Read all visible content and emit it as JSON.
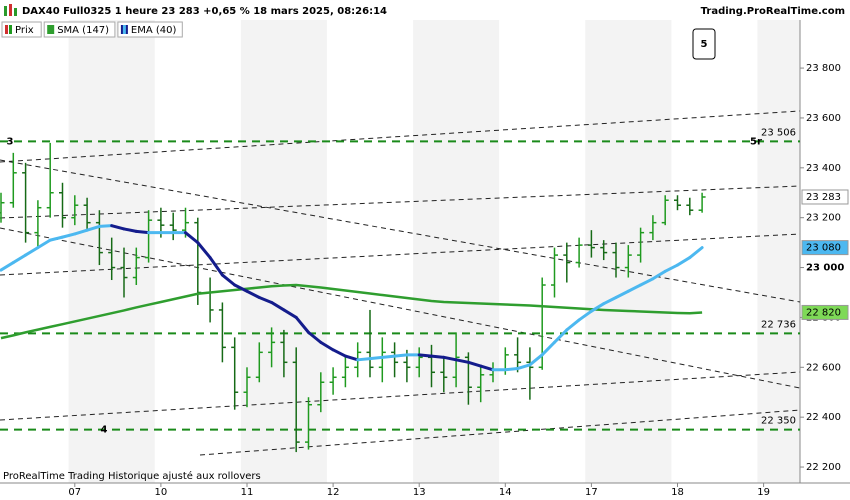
{
  "chart_data": {
    "type": "ohlc",
    "title": "DAX40 Full0325 1 heure 23 283 +0,65 % 18 mars 2025, 08:26:14",
    "source": "Trading.ProRealTime.com",
    "footer": "ProRealTime Trading  Historique ajusté aux rollovers",
    "categories": [
      null,
      null,
      null,
      null,
      null,
      null,
      "07",
      null,
      null,
      null,
      null,
      null,
      null,
      "10",
      null,
      null,
      null,
      null,
      null,
      null,
      "11",
      null,
      null,
      null,
      null,
      null,
      null,
      "12",
      null,
      null,
      null,
      null,
      null,
      null,
      "13",
      null,
      null,
      null,
      null,
      null,
      null,
      "14",
      null,
      null,
      null,
      null,
      null,
      null,
      "17",
      null,
      null,
      null,
      null,
      null,
      null,
      "18",
      null,
      null,
      null,
      null,
      null,
      null,
      "19",
      null,
      null
    ],
    "ylim": [
      22136,
      24073
    ],
    "yticks": [
      {
        "value": 22200,
        "label": "22 200"
      },
      {
        "value": 22400,
        "label": "22 400"
      },
      {
        "value": 22600,
        "label": "22 600"
      },
      {
        "value": 22800,
        "label": "22 800"
      },
      {
        "value": 23000,
        "label": "23 000"
      },
      {
        "value": 23200,
        "label": "23 200"
      },
      {
        "value": 23400,
        "label": "23 400"
      },
      {
        "value": 23600,
        "label": "23 600"
      },
      {
        "value": 23800,
        "label": "23 800"
      }
    ],
    "series": [
      {
        "name": "Prix",
        "type": "ohlc",
        "up_color": "#1f9a1f",
        "down_color": "#166a16",
        "values": [
          [
            23220,
            23300,
            23180,
            23260
          ],
          [
            23260,
            23460,
            23240,
            23380
          ],
          [
            23380,
            23420,
            23100,
            23140
          ],
          [
            23140,
            23270,
            23080,
            23240
          ],
          [
            23240,
            23500,
            23200,
            23300
          ],
          [
            23300,
            23340,
            23160,
            23200
          ],
          [
            23200,
            23290,
            23170,
            23250
          ],
          [
            23250,
            23280,
            23150,
            23180
          ],
          [
            23180,
            23230,
            23010,
            23060
          ],
          [
            23060,
            23120,
            22950,
            23000
          ],
          [
            23000,
            23080,
            22880,
            22960
          ],
          [
            22960,
            23080,
            22930,
            23040
          ],
          [
            23040,
            23230,
            23020,
            23190
          ],
          [
            23190,
            23240,
            23120,
            23170
          ],
          [
            23170,
            23220,
            23110,
            23150
          ],
          [
            23150,
            23240,
            23120,
            23180
          ],
          [
            23180,
            23200,
            22850,
            22900
          ],
          [
            22900,
            22960,
            22780,
            22830
          ],
          [
            22830,
            22860,
            22620,
            22680
          ],
          [
            22680,
            22720,
            22430,
            22500
          ],
          [
            22500,
            22600,
            22440,
            22560
          ],
          [
            22560,
            22700,
            22540,
            22660
          ],
          [
            22660,
            22760,
            22600,
            22700
          ],
          [
            22700,
            22750,
            22560,
            22620
          ],
          [
            22620,
            22680,
            22260,
            22300
          ],
          [
            22300,
            22480,
            22270,
            22450
          ],
          [
            22450,
            22580,
            22420,
            22540
          ],
          [
            22540,
            22600,
            22490,
            22560
          ],
          [
            22560,
            22640,
            22520,
            22600
          ],
          [
            22600,
            22700,
            22560,
            22660
          ],
          [
            22660,
            22830,
            22560,
            22600
          ],
          [
            22600,
            22720,
            22540,
            22660
          ],
          [
            22660,
            22700,
            22560,
            22620
          ],
          [
            22620,
            22670,
            22540,
            22600
          ],
          [
            22600,
            22680,
            22560,
            22640
          ],
          [
            22640,
            22690,
            22520,
            22580
          ],
          [
            22580,
            22640,
            22500,
            22560
          ],
          [
            22560,
            22740,
            22520,
            22640
          ],
          [
            22640,
            22660,
            22450,
            22520
          ],
          [
            22520,
            22600,
            22460,
            22570
          ],
          [
            22570,
            22620,
            22540,
            22590
          ],
          [
            22590,
            22680,
            22570,
            22650
          ],
          [
            22650,
            22720,
            22580,
            22620
          ],
          [
            22620,
            22680,
            22470,
            22600
          ],
          [
            22600,
            22960,
            22590,
            22930
          ],
          [
            22930,
            23080,
            22880,
            23050
          ],
          [
            23050,
            23100,
            22940,
            23020
          ],
          [
            23020,
            23120,
            23000,
            23090
          ],
          [
            23090,
            23150,
            23040,
            23080
          ],
          [
            23080,
            23110,
            23030,
            23060
          ],
          [
            23060,
            23100,
            22960,
            23000
          ],
          [
            23000,
            23090,
            22960,
            23050
          ],
          [
            23050,
            23160,
            23020,
            23140
          ],
          [
            23140,
            23210,
            23110,
            23180
          ],
          [
            23180,
            23290,
            23170,
            23270
          ],
          [
            23270,
            23290,
            23230,
            23250
          ],
          [
            23250,
            23280,
            23210,
            23230
          ],
          [
            23230,
            23300,
            23220,
            23283
          ],
          null,
          null,
          null,
          null,
          null,
          null,
          null
        ]
      },
      {
        "name": "SMA (147)",
        "type": "line",
        "color": "#2f9e2f",
        "values": [
          22717,
          22728,
          22740,
          22751,
          22762,
          22773,
          22784,
          22795,
          22806,
          22817,
          22828,
          22840,
          22851,
          22862,
          22873,
          22884,
          22895,
          22900,
          22905,
          22910,
          22915,
          22920,
          22925,
          22928,
          22930,
          22925,
          22920,
          22914,
          22908,
          22902,
          22896,
          22890,
          22884,
          22878,
          22872,
          22866,
          22862,
          22860,
          22858,
          22856,
          22854,
          22852,
          22850,
          22848,
          22845,
          22842,
          22839,
          22836,
          22833,
          22830,
          22828,
          22826,
          22824,
          22822,
          22820,
          22818,
          22817,
          22820,
          null,
          null,
          null,
          null,
          null,
          null,
          null
        ]
      },
      {
        "name": "EMA (40)",
        "type": "line",
        "color": "#4cb8f0",
        "down_color": "#141c8c",
        "values": [
          22990,
          23020,
          23050,
          23080,
          23110,
          23122,
          23135,
          23150,
          23165,
          23168,
          23155,
          23145,
          23140,
          23140,
          23140,
          23140,
          23100,
          23040,
          22970,
          22930,
          22905,
          22880,
          22860,
          22830,
          22800,
          22740,
          22700,
          22670,
          22645,
          22630,
          22635,
          22640,
          22645,
          22650,
          22650,
          22645,
          22640,
          22630,
          22620,
          22605,
          22590,
          22590,
          22595,
          22610,
          22650,
          22700,
          22750,
          22790,
          22825,
          22855,
          22880,
          22905,
          22930,
          22955,
          22985,
          23010,
          23040,
          23080,
          null,
          null,
          null,
          null,
          null,
          null,
          null
        ]
      }
    ],
    "levels": [
      {
        "value": 23506,
        "label": "23 506",
        "color": "#1a8a1a"
      },
      {
        "value": 22736,
        "label": "22 736",
        "color": "#1a8a1a"
      },
      {
        "value": 22350,
        "label": "22 350",
        "color": "#1a8a1a"
      }
    ],
    "price_tags": [
      {
        "value": 23283,
        "label": "23 283",
        "color": "#ffffff",
        "text_color": "#000000"
      },
      {
        "value": 23080,
        "label": "23 080",
        "color": "#4cb8f0",
        "text_color": "#1a3a80"
      },
      {
        "value": 22820,
        "label": "22 820",
        "color": "#7ed957",
        "text_color": "#1a6a1a"
      }
    ],
    "annotations": [
      "3",
      "4",
      "5",
      "5r"
    ]
  }
}
